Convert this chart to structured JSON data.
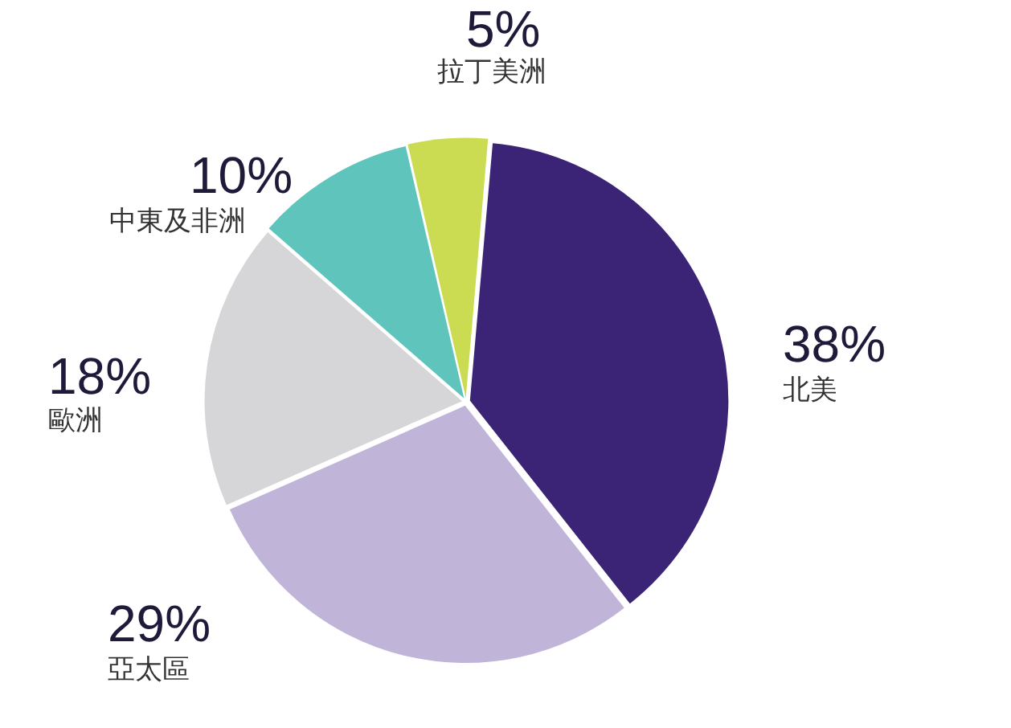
{
  "chart_data": {
    "type": "pie",
    "categories": [
      "北美",
      "亞太區",
      "歐洲",
      "中東及非洲",
      "拉丁美洲"
    ],
    "values": [
      38,
      29,
      18,
      10,
      5
    ],
    "value_labels": [
      "38%",
      "29%",
      "18%",
      "10%",
      "5%"
    ],
    "colors": [
      "#3b2475",
      "#c0b4d9",
      "#d6d6d8",
      "#5ec4bc",
      "#cbdc52"
    ]
  }
}
